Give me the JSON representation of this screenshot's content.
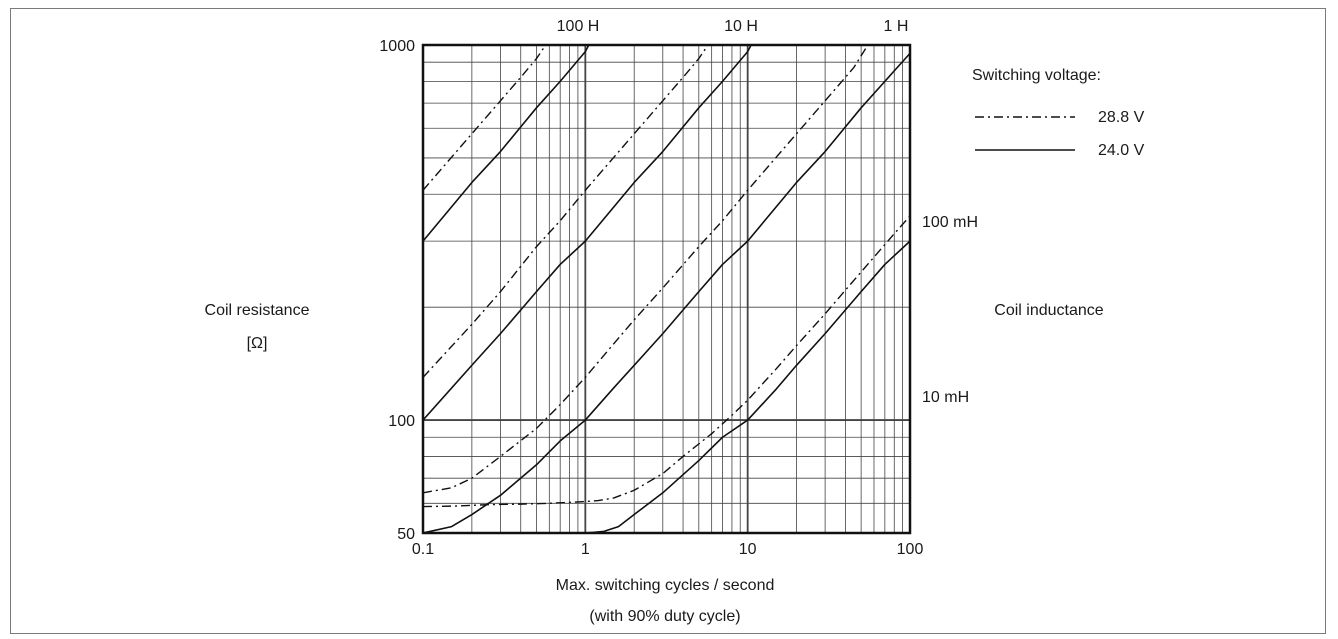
{
  "chart_data": {
    "type": "line",
    "x_scale": "log",
    "y_scale": "log",
    "xlim": [
      0.1,
      100
    ],
    "ylim": [
      50,
      1000
    ],
    "grid": true,
    "x_ticks": [
      0.1,
      1,
      10,
      100
    ],
    "x_tick_labels": [
      "0.1",
      "1",
      "10",
      "100"
    ],
    "y_ticks": [
      50,
      100,
      1000
    ],
    "y_tick_labels": [
      "50",
      "100",
      "1000"
    ],
    "xlabel": "Max. switching cycles / second",
    "xlabel_note": "(with 90% duty cycle)",
    "ylabel": "Coil resistance",
    "ylabel_unit": "[Ω]",
    "right_axis_label": "Coil inductance",
    "inductance_labels": [
      {
        "text": "100 H",
        "position": "top"
      },
      {
        "text": "10 H",
        "position": "top"
      },
      {
        "text": "1 H",
        "position": "top"
      },
      {
        "text": "100 mH",
        "position": "right"
      },
      {
        "text": "10 mH",
        "position": "right"
      }
    ],
    "legend": {
      "title": "Switching voltage:",
      "position": "right",
      "entries": [
        {
          "label": "28.8 V",
          "style": "dash-dot",
          "series_voltage": "28.8 V"
        },
        {
          "label": "24.0 V",
          "style": "solid",
          "series_voltage": "24.0 V"
        }
      ]
    },
    "series": [
      {
        "voltage": "28.8 V",
        "inductance": "100 H",
        "style": "dash-dot",
        "points": [
          [
            0.1,
            58.8
          ],
          [
            0.16,
            59
          ],
          [
            0.25,
            59.5
          ],
          [
            0.4,
            59.7
          ],
          [
            0.6,
            60
          ],
          [
            0.9,
            60.5
          ],
          [
            1.2,
            61
          ],
          [
            1.5,
            62
          ],
          [
            2,
            65
          ],
          [
            3,
            72
          ],
          [
            4,
            80
          ],
          [
            6,
            92
          ],
          [
            8,
            103
          ],
          [
            10,
            113
          ],
          [
            15,
            137
          ],
          [
            20,
            158
          ],
          [
            30,
            192
          ],
          [
            40,
            222
          ],
          [
            60,
            272
          ],
          [
            80,
            314
          ],
          [
            100,
            350
          ]
        ]
      },
      {
        "voltage": "24.0 V",
        "inductance": "100 H",
        "style": "solid",
        "points": [
          [
            0.1,
            50
          ],
          [
            1,
            50
          ],
          [
            1.3,
            50.5
          ],
          [
            1.6,
            52
          ],
          [
            2,
            56
          ],
          [
            3,
            64
          ],
          [
            5,
            78
          ],
          [
            7,
            90
          ],
          [
            10,
            100
          ],
          [
            15,
            121
          ],
          [
            20,
            140
          ],
          [
            30,
            170
          ],
          [
            50,
            220
          ],
          [
            70,
            260
          ],
          [
            100,
            300
          ]
        ]
      },
      {
        "voltage": "28.8 V",
        "inductance": "10 H",
        "style": "dash-dot",
        "points": [
          [
            0.1,
            64
          ],
          [
            0.15,
            66
          ],
          [
            0.2,
            70
          ],
          [
            0.3,
            80
          ],
          [
            0.5,
            95
          ],
          [
            0.7,
            110
          ],
          [
            1,
            130
          ],
          [
            1.5,
            160
          ],
          [
            2,
            185
          ],
          [
            3,
            225
          ],
          [
            5,
            290
          ],
          [
            7,
            340
          ],
          [
            10,
            410
          ],
          [
            20,
            580
          ],
          [
            30,
            710
          ],
          [
            45,
            870
          ],
          [
            55,
            1000
          ]
        ]
      },
      {
        "voltage": "24.0 V",
        "inductance": "10 H",
        "style": "solid",
        "points": [
          [
            0.1,
            50
          ],
          [
            0.15,
            52
          ],
          [
            0.2,
            56
          ],
          [
            0.3,
            63
          ],
          [
            0.5,
            76
          ],
          [
            0.7,
            88
          ],
          [
            1,
            100
          ],
          [
            1.5,
            122
          ],
          [
            2,
            140
          ],
          [
            3,
            170
          ],
          [
            5,
            220
          ],
          [
            7,
            260
          ],
          [
            10,
            300
          ],
          [
            20,
            430
          ],
          [
            30,
            520
          ],
          [
            50,
            680
          ],
          [
            70,
            800
          ],
          [
            100,
            950
          ]
        ]
      },
      {
        "voltage": "28.8 V",
        "inductance": "1 H",
        "style": "dash-dot",
        "points": [
          [
            0.1,
            130
          ],
          [
            0.2,
            180
          ],
          [
            0.3,
            220
          ],
          [
            0.5,
            290
          ],
          [
            0.7,
            340
          ],
          [
            1,
            410
          ],
          [
            2,
            580
          ],
          [
            3,
            710
          ],
          [
            4,
            820
          ],
          [
            5,
            920
          ],
          [
            5.7,
            1000
          ]
        ]
      },
      {
        "voltage": "24.0 V",
        "inductance": "1 H",
        "style": "solid",
        "points": [
          [
            0.1,
            100
          ],
          [
            0.2,
            140
          ],
          [
            0.3,
            170
          ],
          [
            0.5,
            220
          ],
          [
            0.7,
            260
          ],
          [
            1,
            300
          ],
          [
            2,
            430
          ],
          [
            3,
            520
          ],
          [
            5,
            680
          ],
          [
            7,
            800
          ],
          [
            10,
            960
          ],
          [
            10.5,
            1000
          ]
        ]
      },
      {
        "voltage": "28.8 V",
        "inductance": "100 mH",
        "style": "dash-dot",
        "points": [
          [
            0.1,
            410
          ],
          [
            0.2,
            580
          ],
          [
            0.3,
            710
          ],
          [
            0.4,
            820
          ],
          [
            0.5,
            920
          ],
          [
            0.57,
            1000
          ]
        ]
      },
      {
        "voltage": "24.0 V",
        "inductance": "100 mH",
        "style": "solid",
        "points": [
          [
            0.1,
            300
          ],
          [
            0.2,
            430
          ],
          [
            0.3,
            520
          ],
          [
            0.5,
            680
          ],
          [
            0.7,
            800
          ],
          [
            1,
            960
          ],
          [
            1.05,
            1000
          ]
        ]
      }
    ]
  }
}
